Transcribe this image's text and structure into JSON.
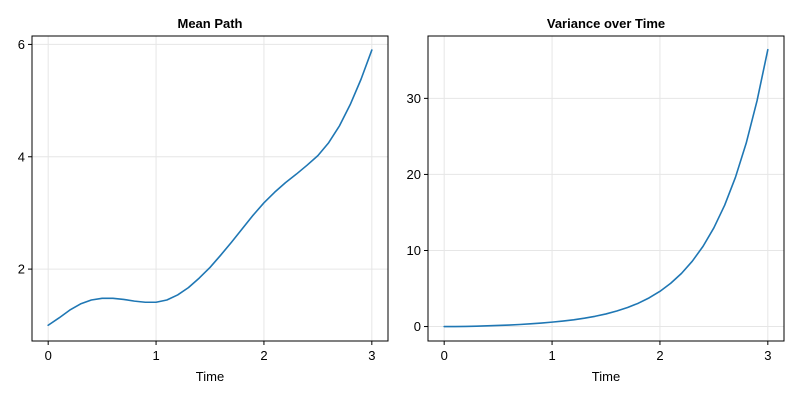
{
  "chart_data": [
    {
      "type": "line",
      "title": "Mean Path",
      "xlabel": "Time",
      "ylabel": "",
      "xlim": [
        -0.15,
        3.15
      ],
      "ylim": [
        0.72,
        6.15
      ],
      "xticks": [
        0,
        1,
        2,
        3
      ],
      "yticks": [
        2,
        4,
        6
      ],
      "grid": true,
      "color": "#1f77b4",
      "series": [
        {
          "x": [
            0,
            0.1,
            0.2,
            0.3,
            0.4,
            0.5,
            0.6,
            0.7,
            0.8,
            0.9,
            1.0,
            1.1,
            1.2,
            1.3,
            1.4,
            1.5,
            1.6,
            1.7,
            1.8,
            1.9,
            2.0,
            2.1,
            2.2,
            2.3,
            2.4,
            2.5,
            2.6,
            2.7,
            2.8,
            2.9,
            3.0
          ],
          "values": [
            1.0,
            1.13,
            1.27,
            1.38,
            1.45,
            1.48,
            1.48,
            1.46,
            1.43,
            1.41,
            1.41,
            1.45,
            1.54,
            1.67,
            1.84,
            2.03,
            2.25,
            2.48,
            2.72,
            2.96,
            3.18,
            3.37,
            3.54,
            3.69,
            3.85,
            4.02,
            4.25,
            4.55,
            4.93,
            5.38,
            5.9
          ]
        }
      ]
    },
    {
      "type": "line",
      "title": "Variance over Time",
      "xlabel": "Time",
      "ylabel": "",
      "xlim": [
        -0.15,
        3.15
      ],
      "ylim": [
        -1.9,
        38.2
      ],
      "xticks": [
        0,
        1,
        2,
        3
      ],
      "yticks": [
        0,
        10,
        20,
        30
      ],
      "grid": true,
      "color": "#1f77b4",
      "series": [
        {
          "x": [
            0,
            0.1,
            0.2,
            0.3,
            0.4,
            0.5,
            0.6,
            0.7,
            0.8,
            0.9,
            1.0,
            1.1,
            1.2,
            1.3,
            1.4,
            1.5,
            1.6,
            1.7,
            1.8,
            1.9,
            2.0,
            2.1,
            2.2,
            2.3,
            2.4,
            2.5,
            2.6,
            2.7,
            2.8,
            2.9,
            3.0
          ],
          "values": [
            0.0,
            0.0,
            0.02,
            0.05,
            0.09,
            0.14,
            0.2,
            0.27,
            0.36,
            0.46,
            0.58,
            0.72,
            0.89,
            1.1,
            1.35,
            1.66,
            2.04,
            2.5,
            3.07,
            3.77,
            4.63,
            5.69,
            6.99,
            8.59,
            10.56,
            12.98,
            15.96,
            19.62,
            24.13,
            29.68,
            36.4
          ]
        }
      ]
    }
  ]
}
